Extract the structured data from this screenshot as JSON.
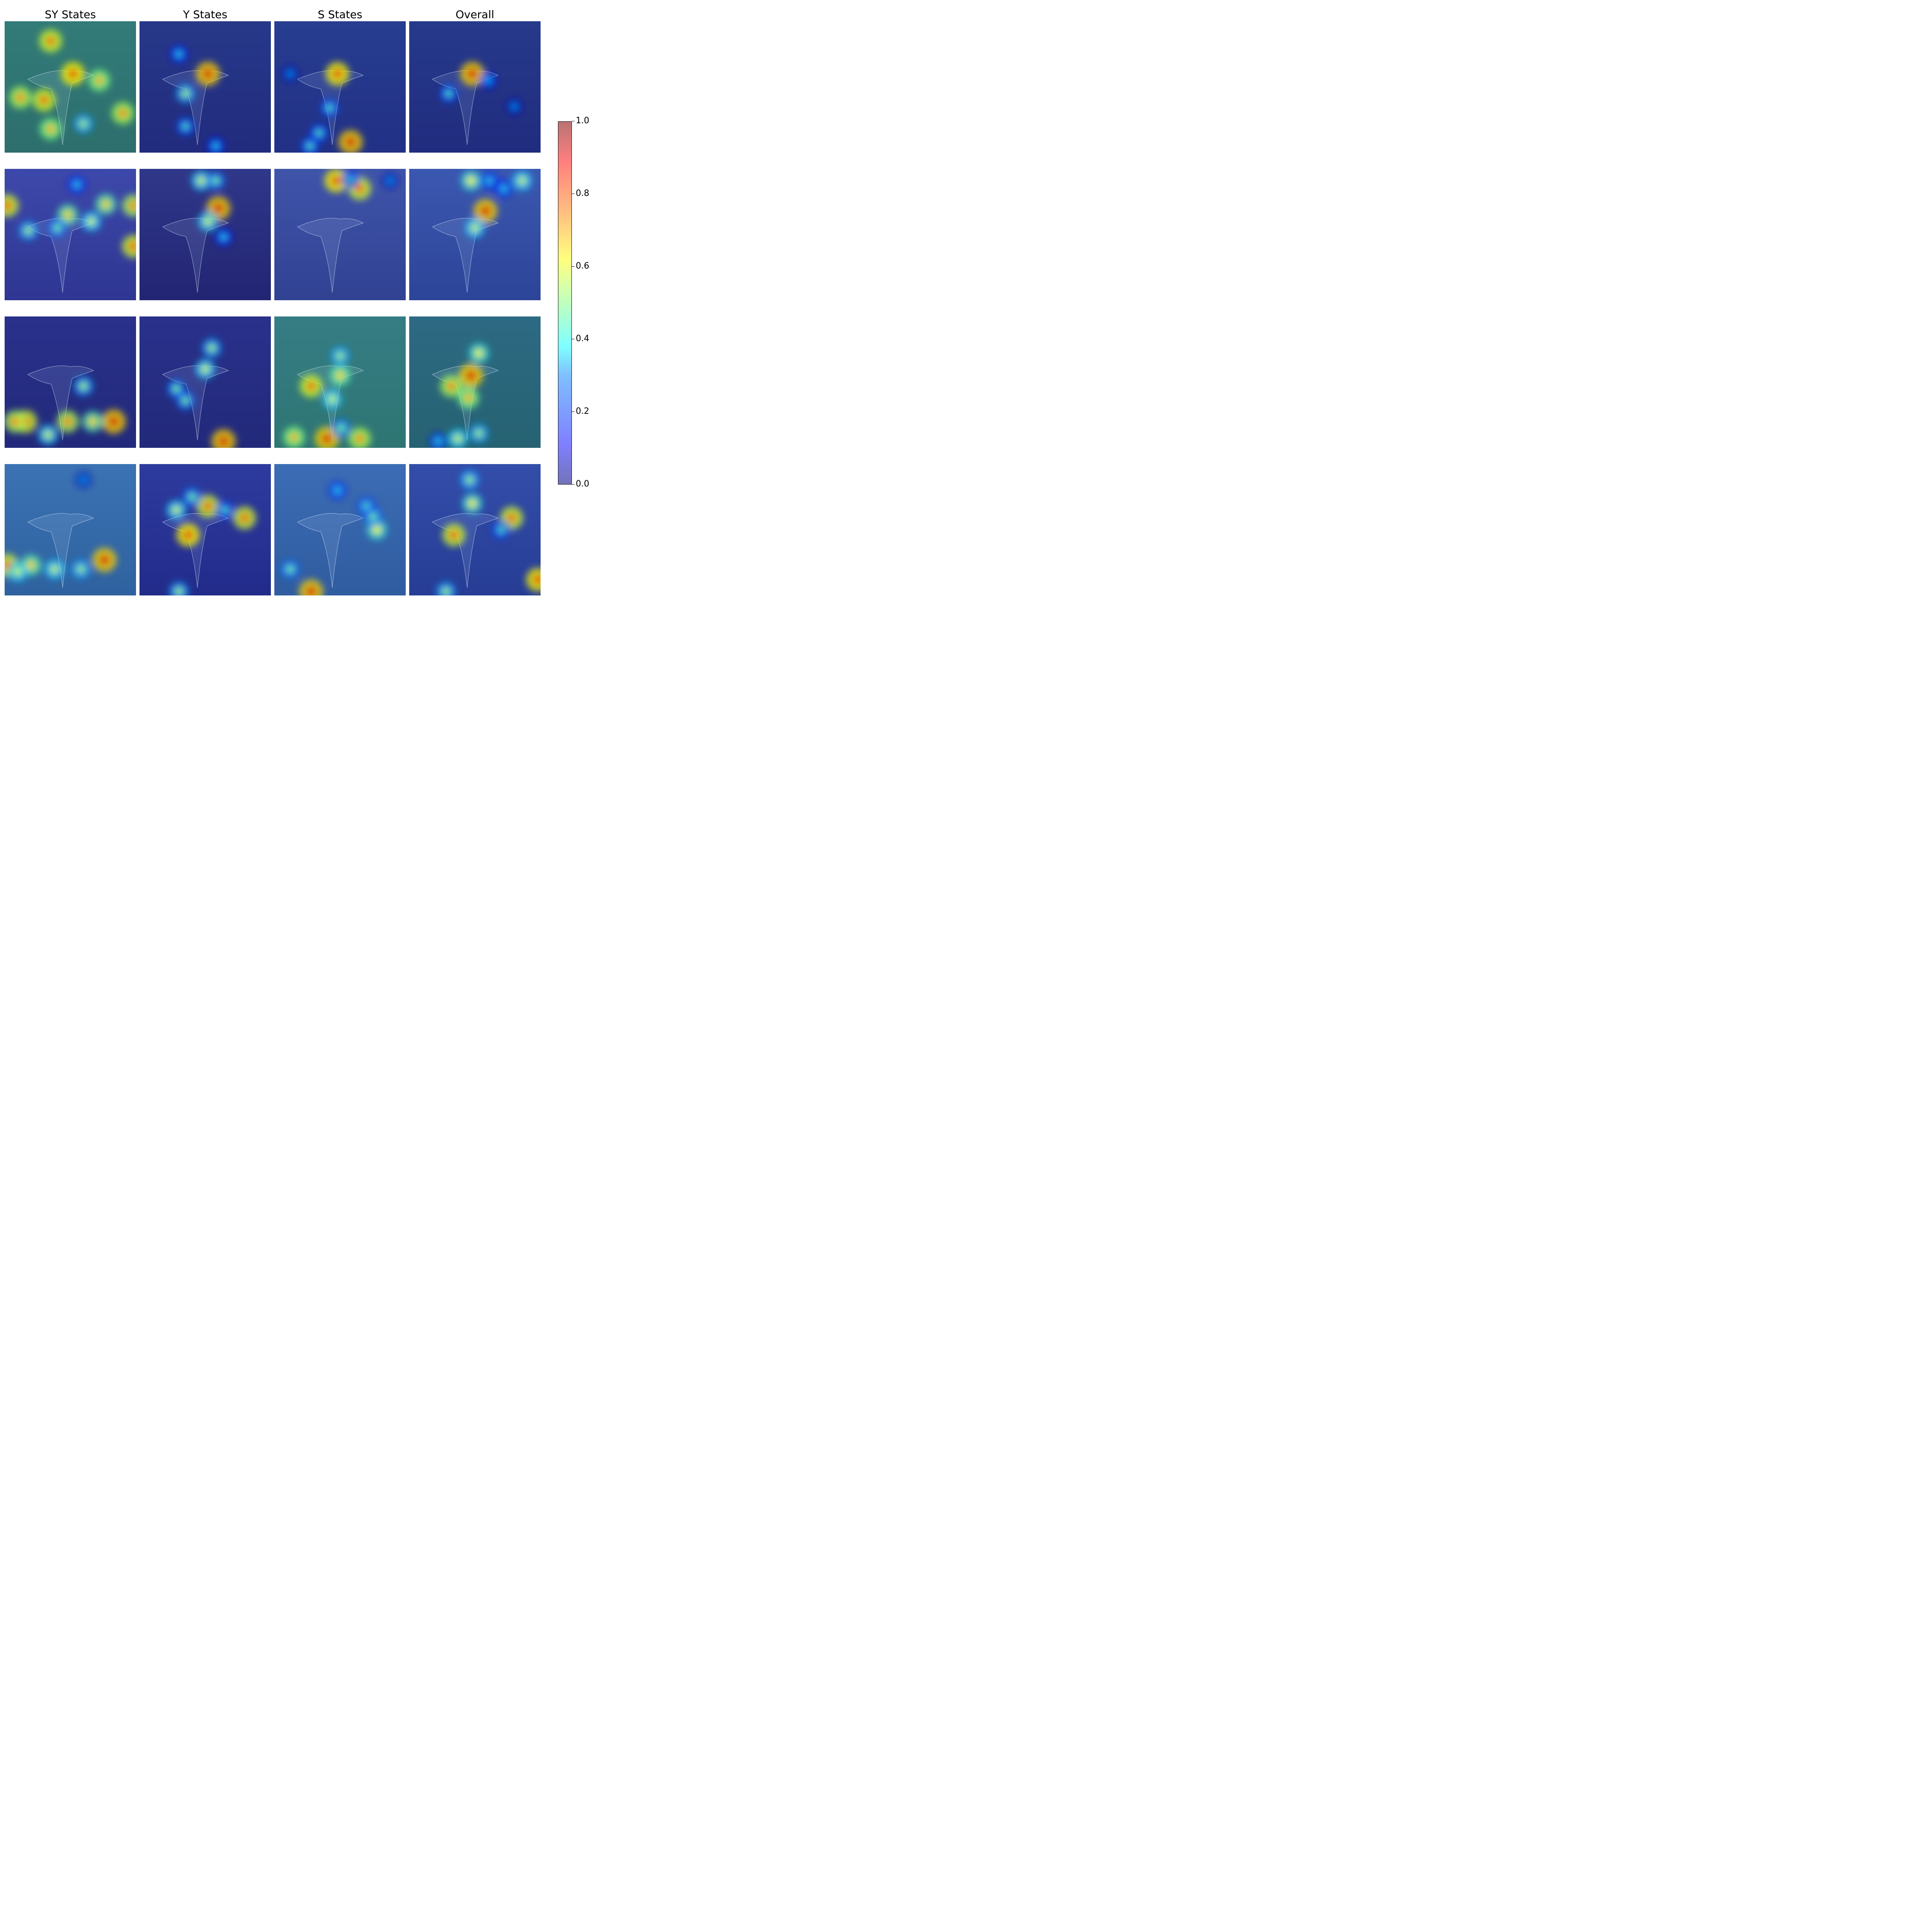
{
  "columns": [
    "SY States",
    "Y States",
    "S States",
    "Overall"
  ],
  "colorbar": {
    "ticks": [
      "0.0",
      "0.2",
      "0.4",
      "0.6",
      "0.8",
      "1.0"
    ],
    "range": [
      0.0,
      1.0
    ]
  },
  "rows": [
    {
      "scene": "bird-over-pond-with-fence",
      "bg": [
        "#1f4f5a",
        "#0d2433"
      ],
      "tiles": [
        {
          "base": "#3a8f86",
          "spots": [
            [
              0.52,
              0.4,
              0.9
            ],
            [
              0.3,
              0.6,
              0.85
            ],
            [
              0.12,
              0.58,
              0.8
            ],
            [
              0.9,
              0.7,
              0.8
            ],
            [
              0.72,
              0.45,
              0.75
            ],
            [
              0.35,
              0.15,
              0.85
            ],
            [
              0.35,
              0.82,
              0.75
            ],
            [
              0.6,
              0.78,
              0.55
            ]
          ]
        },
        {
          "base": "#2b2f9e",
          "spots": [
            [
              0.52,
              0.4,
              0.95
            ],
            [
              0.35,
              0.55,
              0.55
            ],
            [
              0.35,
              0.8,
              0.45
            ],
            [
              0.58,
              0.95,
              0.4
            ],
            [
              0.3,
              0.25,
              0.4
            ]
          ]
        },
        {
          "base": "#2b36a8",
          "spots": [
            [
              0.48,
              0.4,
              0.9
            ],
            [
              0.58,
              0.92,
              0.95
            ],
            [
              0.34,
              0.85,
              0.45
            ],
            [
              0.42,
              0.66,
              0.45
            ],
            [
              0.27,
              0.95,
              0.45
            ],
            [
              0.12,
              0.4,
              0.3
            ]
          ]
        },
        {
          "base": "#2a30a0",
          "spots": [
            [
              0.48,
              0.4,
              0.95
            ],
            [
              0.3,
              0.55,
              0.45
            ],
            [
              0.8,
              0.65,
              0.3
            ],
            [
              0.6,
              0.45,
              0.35
            ]
          ]
        }
      ]
    },
    {
      "scene": "bird-on-sea-rocks",
      "bg": [
        "#4a5a8a",
        "#1b1b3a"
      ],
      "tiles": [
        {
          "base": "#3841b8",
          "spots": [
            [
              0.02,
              0.28,
              0.85
            ],
            [
              0.98,
              0.28,
              0.8
            ],
            [
              0.98,
              0.59,
              0.85
            ],
            [
              0.48,
              0.35,
              0.7
            ],
            [
              0.77,
              0.27,
              0.7
            ],
            [
              0.55,
              0.12,
              0.4
            ],
            [
              0.66,
              0.4,
              0.6
            ],
            [
              0.18,
              0.47,
              0.55
            ],
            [
              0.4,
              0.45,
              0.5
            ]
          ]
        },
        {
          "base": "#252a8a",
          "spots": [
            [
              0.6,
              0.3,
              0.95
            ],
            [
              0.52,
              0.4,
              0.6
            ],
            [
              0.47,
              0.09,
              0.6
            ],
            [
              0.58,
              0.09,
              0.5
            ],
            [
              0.64,
              0.52,
              0.4
            ]
          ]
        },
        {
          "base": "#3a53b8",
          "spots": [
            [
              0.47,
              0.09,
              0.9
            ],
            [
              0.65,
              0.15,
              0.85
            ],
            [
              0.58,
              0.08,
              0.4
            ],
            [
              0.88,
              0.09,
              0.3
            ]
          ]
        },
        {
          "base": "#3457c0",
          "spots": [
            [
              0.58,
              0.32,
              0.95
            ],
            [
              0.5,
              0.45,
              0.6
            ],
            [
              0.47,
              0.09,
              0.65
            ],
            [
              0.86,
              0.09,
              0.6
            ],
            [
              0.61,
              0.09,
              0.4
            ],
            [
              0.72,
              0.15,
              0.4
            ]
          ]
        }
      ]
    },
    {
      "scene": "bird-over-canyon-river",
      "bg": [
        "#2a3a6a",
        "#112030"
      ],
      "tiles": [
        {
          "base": "#2a2d9a",
          "spots": [
            [
              0.83,
              0.8,
              0.95
            ],
            [
              0.16,
              0.8,
              0.85
            ],
            [
              0.08,
              0.8,
              0.8
            ],
            [
              0.48,
              0.8,
              0.8
            ],
            [
              0.67,
              0.8,
              0.7
            ],
            [
              0.6,
              0.53,
              0.55
            ],
            [
              0.33,
              0.9,
              0.6
            ]
          ]
        },
        {
          "base": "#2a2d9a",
          "spots": [
            [
              0.64,
              0.95,
              0.95
            ],
            [
              0.5,
              0.4,
              0.6
            ],
            [
              0.55,
              0.24,
              0.55
            ],
            [
              0.28,
              0.55,
              0.5
            ],
            [
              0.35,
              0.64,
              0.5
            ]
          ]
        },
        {
          "base": "#3a9a90",
          "spots": [
            [
              0.4,
              0.93,
              0.95
            ],
            [
              0.28,
              0.53,
              0.85
            ],
            [
              0.65,
              0.93,
              0.8
            ],
            [
              0.15,
              0.92,
              0.75
            ],
            [
              0.5,
              0.45,
              0.7
            ],
            [
              0.5,
              0.3,
              0.55
            ],
            [
              0.44,
              0.63,
              0.6
            ],
            [
              0.51,
              0.85,
              0.5
            ]
          ]
        },
        {
          "base": "#2f7f8f",
          "spots": [
            [
              0.47,
              0.45,
              0.95
            ],
            [
              0.32,
              0.53,
              0.8
            ],
            [
              0.45,
              0.62,
              0.75
            ],
            [
              0.53,
              0.28,
              0.65
            ],
            [
              0.37,
              0.93,
              0.6
            ],
            [
              0.53,
              0.89,
              0.55
            ],
            [
              0.22,
              0.95,
              0.4
            ]
          ]
        }
      ]
    },
    {
      "scene": "bird-in-swamp-forest",
      "bg": [
        "#3a5a88",
        "#112244"
      ],
      "tiles": [
        {
          "base": "#3c7ec6",
          "spots": [
            [
              0.76,
              0.73,
              0.95
            ],
            [
              0.02,
              0.77,
              0.85
            ],
            [
              0.2,
              0.77,
              0.7
            ],
            [
              0.38,
              0.8,
              0.6
            ],
            [
              0.58,
              0.8,
              0.55
            ],
            [
              0.1,
              0.82,
              0.6
            ],
            [
              0.6,
              0.12,
              0.3
            ]
          ]
        },
        {
          "base": "#2a2fa8",
          "spots": [
            [
              0.37,
              0.54,
              0.9
            ],
            [
              0.52,
              0.32,
              0.85
            ],
            [
              0.8,
              0.41,
              0.85
            ],
            [
              0.28,
              0.35,
              0.6
            ],
            [
              0.3,
              0.97,
              0.55
            ],
            [
              0.65,
              0.35,
              0.45
            ],
            [
              0.4,
              0.25,
              0.5
            ]
          ]
        },
        {
          "base": "#3d75c8",
          "spots": [
            [
              0.28,
              0.97,
              0.95
            ],
            [
              0.78,
              0.5,
              0.65
            ],
            [
              0.75,
              0.4,
              0.5
            ],
            [
              0.12,
              0.8,
              0.5
            ],
            [
              0.48,
              0.2,
              0.4
            ],
            [
              0.7,
              0.32,
              0.45
            ]
          ]
        },
        {
          "base": "#3148b8",
          "spots": [
            [
              0.34,
              0.54,
              0.85
            ],
            [
              0.98,
              0.88,
              0.9
            ],
            [
              0.78,
              0.41,
              0.85
            ],
            [
              0.48,
              0.3,
              0.65
            ],
            [
              0.46,
              0.12,
              0.55
            ],
            [
              0.28,
              0.97,
              0.55
            ],
            [
              0.7,
              0.5,
              0.45
            ]
          ]
        }
      ]
    }
  ]
}
